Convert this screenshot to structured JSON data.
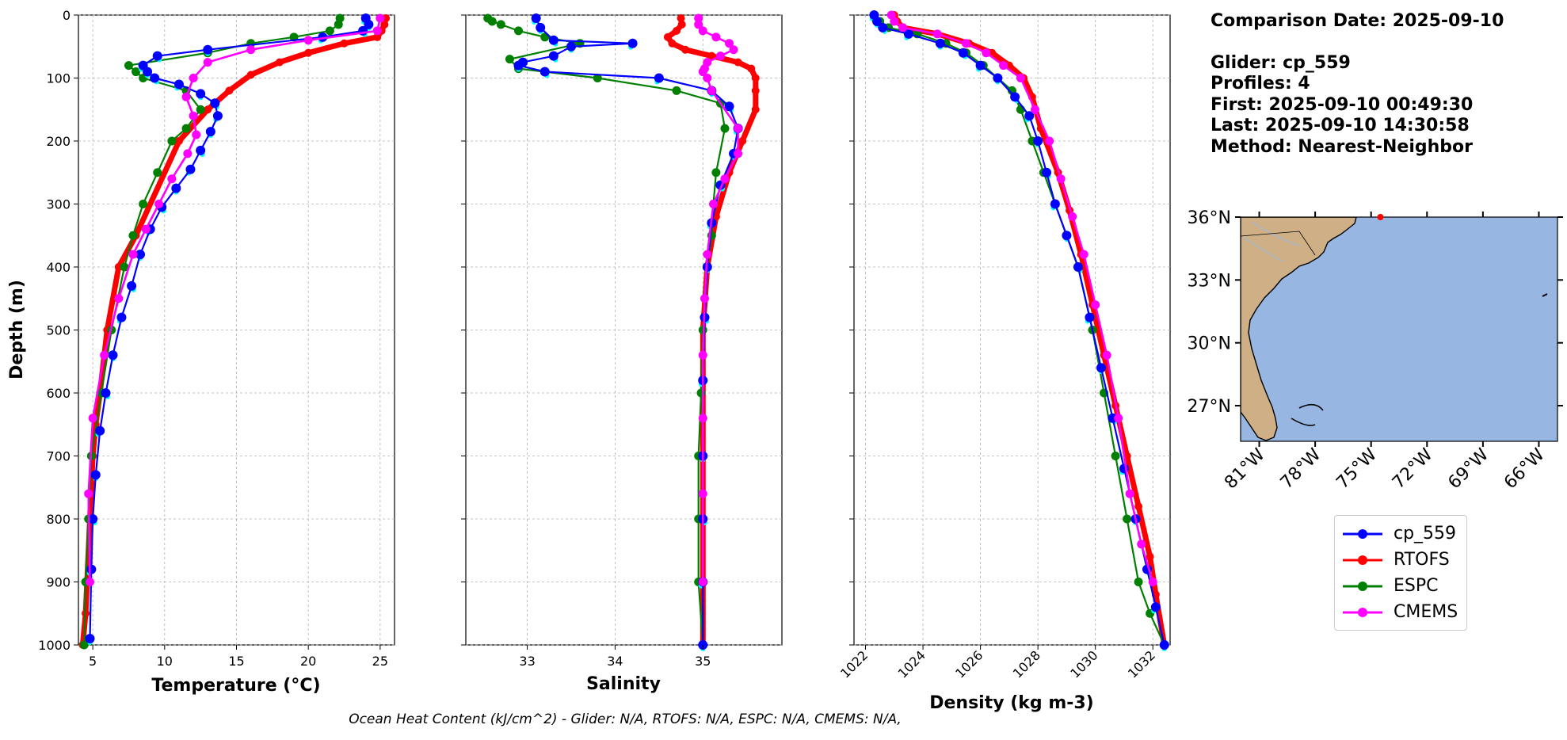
{
  "info": {
    "comparison_date": "Comparison Date: 2025-09-10",
    "glider": "Glider: cp_559",
    "profiles": "Profiles: 4",
    "first": "First: 2025-09-10 00:49:30",
    "last": "Last: 2025-09-10 14:30:58",
    "method": "Method: Nearest-Neighbor"
  },
  "footer": "Ocean Heat Content (kJ/cm^2) - Glider: N/A,  RTOFS: N/A,  ESPC: N/A,  CMEMS: N/A,",
  "colors": {
    "glider": "#0000ff",
    "glider_points": "#00ffff",
    "rtofs": "#ff0000",
    "espc": "#008000",
    "cmems": "#ff00ff",
    "ocean": "#97b6e1",
    "land": "#cfaf86",
    "grid": "#b0b0b0"
  },
  "legend": [
    {
      "label": "cp_559",
      "color": "#0000ff"
    },
    {
      "label": "RTOFS",
      "color": "#ff0000"
    },
    {
      "label": "ESPC",
      "color": "#008000"
    },
    {
      "label": "CMEMS",
      "color": "#ff00ff"
    }
  ],
  "map": {
    "lat_labels": [
      "36°N",
      "33°N",
      "30°N",
      "27°N"
    ],
    "lat_values": [
      36,
      33,
      30,
      27
    ],
    "lon_labels": [
      "81°W",
      "78°W",
      "75°W",
      "72°W",
      "69°W",
      "66°W"
    ],
    "lon_values": [
      -81,
      -78,
      -75,
      -72,
      -69,
      -66
    ],
    "lat_range": [
      25.3,
      36.0
    ],
    "lon_range": [
      -82.0,
      -65.0
    ],
    "glider_location": {
      "lat": 36.0,
      "lon": -74.5
    }
  },
  "chart_data": [
    {
      "type": "line",
      "title": "",
      "xlabel": "Temperature (°C)",
      "ylabel": "Depth (m)",
      "xlim": [
        4,
        26
      ],
      "ylim": [
        1000,
        0
      ],
      "xticks": [
        5,
        10,
        15,
        20,
        25
      ],
      "yticks": [
        0,
        100,
        200,
        300,
        400,
        500,
        600,
        700,
        800,
        900,
        1000
      ],
      "grid": true,
      "series": [
        {
          "name": "cp_559",
          "key": "glider",
          "x": [
            24,
            24.2,
            23.8,
            21,
            13,
            9.5,
            8.5,
            8.8,
            9.3,
            11,
            12.5,
            13.5,
            13.7,
            13.2,
            12.5,
            11.8,
            10.8,
            9.8,
            9.0,
            8.3,
            7.7,
            7.0,
            6.4,
            5.9,
            5.5,
            5.2,
            5.0,
            4.9,
            4.8
          ],
          "y": [
            5,
            15,
            25,
            35,
            55,
            65,
            80,
            90,
            100,
            110,
            125,
            140,
            160,
            185,
            215,
            245,
            275,
            305,
            340,
            380,
            430,
            480,
            540,
            600,
            660,
            730,
            800,
            880,
            990
          ]
        },
        {
          "name": "RTOFS",
          "key": "rtofs",
          "x": [
            25.4,
            25.3,
            25.1,
            24.8,
            22.5,
            20,
            18,
            16,
            14.5,
            13,
            11,
            8,
            6.8,
            6.0,
            5.5,
            5.2,
            5.0,
            4.8,
            4.6,
            4.5,
            4.3
          ],
          "y": [
            5,
            15,
            25,
            35,
            45,
            60,
            75,
            95,
            120,
            150,
            200,
            350,
            400,
            500,
            600,
            650,
            700,
            800,
            900,
            950,
            1000
          ]
        },
        {
          "name": "ESPC",
          "key": "espc",
          "x": [
            22.2,
            22.1,
            21.5,
            19,
            16,
            13,
            7.5,
            8.0,
            8.5,
            11.5,
            12.5,
            11.5,
            10.5,
            9.5,
            8.5,
            7.8,
            7.2,
            6.3,
            5.6,
            4.9,
            4.7,
            4.5,
            4.4
          ],
          "y": [
            5,
            15,
            25,
            35,
            45,
            60,
            80,
            90,
            100,
            120,
            150,
            180,
            200,
            250,
            300,
            350,
            400,
            500,
            600,
            700,
            800,
            900,
            1000
          ]
        },
        {
          "name": "CMEMS",
          "key": "cmems",
          "x": [
            25,
            24.8,
            20,
            16,
            13,
            12,
            11.5,
            12,
            12.2,
            11.6,
            10.5,
            9.6,
            8.7,
            7.8,
            6.8,
            5.8,
            5.0,
            4.7,
            4.8
          ],
          "y": [
            5,
            25,
            40,
            55,
            75,
            100,
            130,
            160,
            190,
            220,
            260,
            300,
            340,
            380,
            450,
            540,
            640,
            760,
            900
          ]
        }
      ]
    },
    {
      "type": "line",
      "title": "",
      "xlabel": "Salinity",
      "ylabel": "",
      "xlim": [
        32.3,
        35.9
      ],
      "ylim": [
        1000,
        0
      ],
      "xticks": [
        33,
        34,
        35
      ],
      "yticks": [
        0,
        100,
        200,
        300,
        400,
        500,
        600,
        700,
        800,
        900,
        1000
      ],
      "grid": true,
      "series": [
        {
          "name": "cp_559",
          "key": "glider",
          "x": [
            33.1,
            33.15,
            33.3,
            34.2,
            33.5,
            33.3,
            32.95,
            32.9,
            33.2,
            34.5,
            35.1,
            35.3,
            35.4,
            35.35,
            35.2,
            35.1,
            35.05,
            35.02,
            35.0,
            35.0,
            35.0,
            35.0,
            35.0
          ],
          "y": [
            5,
            20,
            40,
            45,
            50,
            65,
            75,
            80,
            90,
            100,
            120,
            145,
            180,
            220,
            270,
            330,
            400,
            480,
            580,
            700,
            800,
            900,
            1000
          ]
        },
        {
          "name": "RTOFS",
          "key": "rtofs",
          "x": [
            34.75,
            34.76,
            34.7,
            34.6,
            34.65,
            34.8,
            35.1,
            35.4,
            35.55,
            35.6,
            35.6,
            35.6,
            35.45,
            35.3,
            35.15,
            35.05,
            35.0,
            35.0,
            35.0,
            35.0
          ],
          "y": [
            5,
            15,
            25,
            35,
            45,
            55,
            65,
            75,
            85,
            100,
            120,
            150,
            200,
            250,
            320,
            400,
            500,
            700,
            900,
            1000
          ]
        },
        {
          "name": "ESPC",
          "key": "espc",
          "x": [
            32.55,
            32.6,
            32.7,
            32.9,
            33.2,
            33.6,
            32.8,
            32.9,
            33.8,
            34.7,
            35.2,
            35.25,
            35.15,
            35.12,
            35.1,
            35.05,
            35.0,
            34.98,
            34.95,
            34.95,
            34.95,
            35.0
          ],
          "y": [
            5,
            10,
            15,
            25,
            35,
            45,
            70,
            85,
            100,
            120,
            140,
            180,
            250,
            300,
            350,
            400,
            500,
            600,
            700,
            800,
            900,
            1000
          ]
        },
        {
          "name": "CMEMS",
          "key": "cmems",
          "x": [
            34.95,
            34.95,
            35.0,
            35.15,
            35.3,
            35.35,
            35.2,
            35.05,
            35.02,
            35.0,
            35.05,
            35.1,
            35.4,
            35.4,
            35.25,
            35.12,
            35.05,
            35.02,
            35.0,
            35.0,
            35.0,
            35.0
          ],
          "y": [
            5,
            15,
            25,
            35,
            45,
            55,
            65,
            75,
            85,
            90,
            100,
            120,
            180,
            220,
            260,
            300,
            380,
            450,
            540,
            640,
            760,
            900
          ]
        }
      ]
    },
    {
      "type": "line",
      "title": "",
      "xlabel": "Density (kg m-3)",
      "ylabel": "",
      "xlim": [
        1021.6,
        1032.6
      ],
      "ylim": [
        1000,
        0
      ],
      "xticks": [
        1022,
        1024,
        1026,
        1028,
        1030,
        1032
      ],
      "yticks": [
        0,
        100,
        200,
        300,
        400,
        500,
        600,
        700,
        800,
        900,
        1000
      ],
      "grid": true,
      "series": [
        {
          "name": "cp_559",
          "key": "glider",
          "x": [
            1022.3,
            1022.4,
            1022.6,
            1023.5,
            1024.6,
            1025.4,
            1026.0,
            1026.6,
            1027.2,
            1027.7,
            1028.0,
            1028.3,
            1028.6,
            1029.0,
            1029.4,
            1029.8,
            1030.2,
            1030.6,
            1031.0,
            1031.4,
            1031.8,
            1032.1,
            1032.4
          ],
          "y": [
            0,
            10,
            20,
            30,
            45,
            60,
            80,
            100,
            130,
            160,
            200,
            250,
            300,
            350,
            400,
            480,
            560,
            640,
            720,
            800,
            880,
            940,
            1000
          ]
        },
        {
          "name": "RTOFS",
          "key": "rtofs",
          "x": [
            1023.0,
            1023.1,
            1023.3,
            1024.5,
            1025.6,
            1026.4,
            1027.0,
            1027.5,
            1027.8,
            1028.1,
            1028.7,
            1029.1,
            1029.5,
            1029.9,
            1030.3,
            1030.7,
            1031.1,
            1031.5,
            1031.9,
            1032.1,
            1032.4
          ],
          "y": [
            0,
            10,
            20,
            30,
            45,
            60,
            80,
            100,
            130,
            180,
            250,
            310,
            380,
            460,
            540,
            620,
            700,
            780,
            860,
            920,
            1000
          ]
        },
        {
          "name": "ESPC",
          "key": "espc",
          "x": [
            1022.3,
            1022.5,
            1022.8,
            1023.8,
            1024.8,
            1025.5,
            1026.1,
            1026.6,
            1027.1,
            1027.4,
            1027.8,
            1028.2,
            1028.6,
            1029.0,
            1029.4,
            1029.9,
            1030.3,
            1030.7,
            1031.1,
            1031.5,
            1031.9,
            1032.4
          ],
          "y": [
            0,
            10,
            20,
            30,
            45,
            60,
            80,
            100,
            120,
            150,
            200,
            250,
            300,
            350,
            400,
            500,
            600,
            700,
            800,
            900,
            950,
            1000
          ]
        },
        {
          "name": "CMEMS",
          "key": "cmems",
          "x": [
            1022.9,
            1023.0,
            1023.3,
            1024.5,
            1025.5,
            1026.2,
            1026.8,
            1027.4,
            1027.9,
            1028.4,
            1028.8,
            1029.2,
            1029.6,
            1030.0,
            1030.4,
            1030.8,
            1031.2,
            1031.6,
            1032.0
          ],
          "y": [
            0,
            10,
            20,
            30,
            45,
            60,
            80,
            100,
            150,
            200,
            260,
            320,
            380,
            460,
            540,
            640,
            760,
            840,
            900
          ]
        }
      ]
    }
  ]
}
